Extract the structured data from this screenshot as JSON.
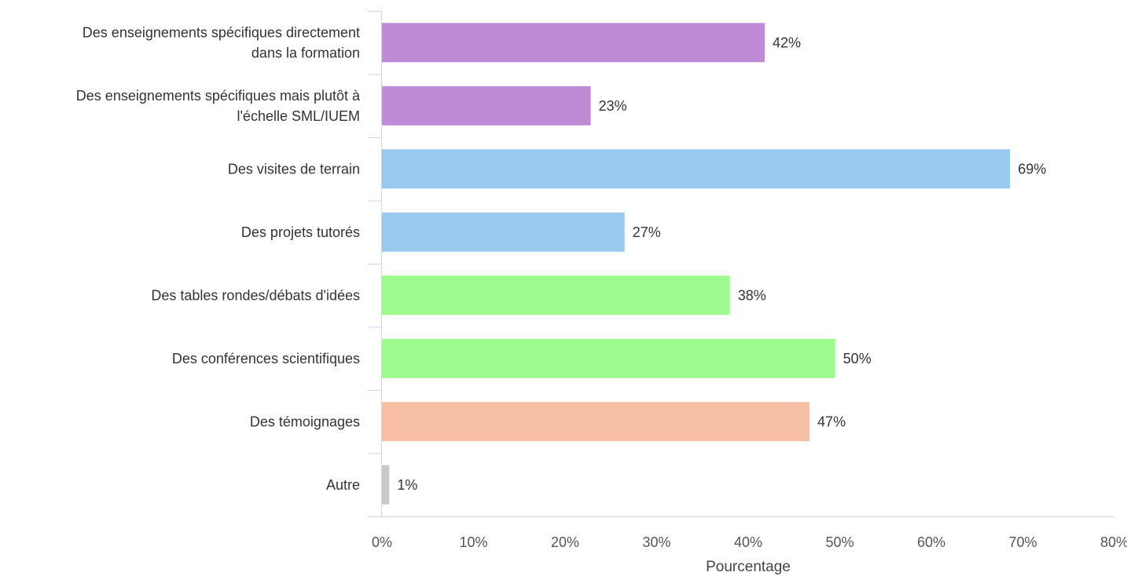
{
  "chart_data": {
    "type": "bar",
    "orientation": "horizontal",
    "title": "",
    "xlabel": "Pourcentage",
    "ylabel": "",
    "xlim": [
      0,
      80
    ],
    "x_ticks": [
      "0%",
      "10%",
      "20%",
      "30%",
      "40%",
      "50%",
      "60%",
      "70%",
      "80%"
    ],
    "grid": false,
    "legend": "none",
    "categories": [
      [
        "Des enseignements spécifiques directement",
        "dans la formation"
      ],
      [
        "Des enseignements spécifiques mais plutôt à",
        "l'échelle SML/IUEM"
      ],
      [
        "Des visites de terrain"
      ],
      [
        "Des projets tutorés"
      ],
      [
        "Des tables rondes/débats d'idées"
      ],
      [
        "Des conférences scientifiques"
      ],
      [
        "Des témoignages"
      ],
      [
        "Autre"
      ]
    ],
    "values": [
      41.8,
      22.8,
      68.6,
      26.5,
      38.0,
      49.5,
      46.7,
      0.8
    ],
    "value_labels": [
      "42%",
      "23%",
      "69%",
      "27%",
      "38%",
      "50%",
      "47%",
      "1%"
    ],
    "colors": [
      "#bf8bd6",
      "#bf8bd6",
      "#99c9ef",
      "#99c9ef",
      "#9dfa8c",
      "#9dfa8c",
      "#f7bea6",
      "#c8c8c8"
    ]
  }
}
